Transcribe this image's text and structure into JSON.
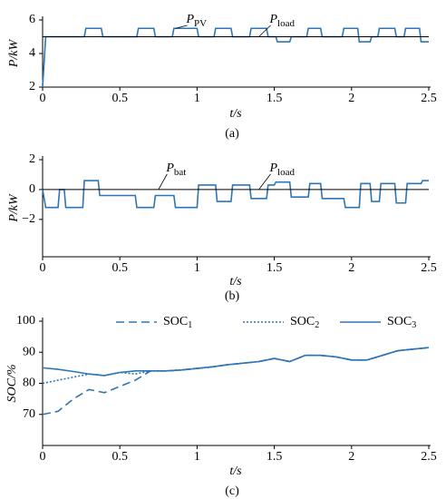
{
  "chart_data": [
    {
      "type": "line",
      "panel": "(a)",
      "ylabel": "P/kW",
      "xlabel": "t/s",
      "xlim": [
        0,
        2.5
      ],
      "xticks": [
        0,
        0.5,
        1,
        1.5,
        2,
        2.5
      ],
      "ylim": [
        2,
        6
      ],
      "yticks": [
        2,
        4,
        6
      ],
      "series": [
        {
          "name": "P",
          "subscript": "PV",
          "color": "#2e75b6",
          "style": "solid",
          "x": [
            0,
            0.02,
            0.27,
            0.28,
            0.38,
            0.39,
            0.61,
            0.62,
            0.72,
            0.73,
            0.84,
            0.85,
            1.0,
            1.01,
            1.11,
            1.12,
            1.22,
            1.23,
            1.34,
            1.35,
            1.45,
            1.46,
            1.51,
            1.52,
            1.6,
            1.61,
            1.71,
            1.72,
            1.8,
            1.81,
            1.94,
            1.95,
            2.04,
            2.05,
            2.12,
            2.13,
            2.17,
            2.18,
            2.28,
            2.29,
            2.34,
            2.35,
            2.44,
            2.45,
            2.5
          ],
          "values": [
            2,
            5,
            5,
            5.5,
            5.5,
            5,
            5,
            5.5,
            5.5,
            5,
            5,
            5.5,
            5.5,
            5,
            5,
            5.5,
            5.5,
            5,
            5,
            5.5,
            5.5,
            5,
            5,
            4.7,
            4.7,
            5,
            5,
            5.5,
            5.5,
            5,
            5,
            5.5,
            5.5,
            4.7,
            4.7,
            5,
            5,
            5.5,
            5.5,
            5,
            5,
            5.5,
            5.5,
            4.7,
            4.7
          ]
        },
        {
          "name": "P",
          "subscript": "load",
          "color": "#000000",
          "style": "solid",
          "x": [
            0,
            2.5
          ],
          "values": [
            5,
            5
          ]
        }
      ]
    },
    {
      "type": "line",
      "panel": "(b)",
      "ylabel": "P/kW",
      "xlabel": "t/s",
      "xlim": [
        0,
        2.5
      ],
      "xticks": [
        0,
        0.5,
        1,
        1.5,
        2,
        2.5
      ],
      "ylim": [
        -4.5,
        2
      ],
      "yticks": [
        2,
        0,
        {
          "value": -2,
          "label": "−2"
        }
      ],
      "series": [
        {
          "name": "P",
          "subscript": "bat",
          "color": "#2e75b6",
          "style": "solid",
          "x": [
            0,
            0.02,
            0.1,
            0.11,
            0.14,
            0.15,
            0.26,
            0.27,
            0.36,
            0.37,
            0.6,
            0.61,
            0.72,
            0.73,
            0.85,
            0.86,
            1.0,
            1.01,
            1.12,
            1.13,
            1.22,
            1.23,
            1.34,
            1.35,
            1.45,
            1.46,
            1.5,
            1.51,
            1.6,
            1.61,
            1.72,
            1.73,
            1.8,
            1.81,
            1.95,
            1.96,
            2.05,
            2.06,
            2.12,
            2.13,
            2.18,
            2.19,
            2.28,
            2.29,
            2.35,
            2.36,
            2.45,
            2.46,
            2.5
          ],
          "values": [
            0,
            -1.2,
            -1.2,
            0,
            0,
            -1.2,
            -1.2,
            0.6,
            0.6,
            -0.4,
            -0.4,
            -1.2,
            -1.2,
            -0.4,
            -0.4,
            -1.2,
            -1.2,
            0.3,
            0.3,
            -0.8,
            -0.8,
            0.3,
            0.3,
            -0.6,
            -0.6,
            0.3,
            0.3,
            0.5,
            0.5,
            -0.5,
            -0.5,
            0.4,
            0.4,
            -0.6,
            -0.6,
            -1.2,
            -1.2,
            0.4,
            0.4,
            -0.8,
            -0.8,
            0.4,
            0.4,
            -0.9,
            -0.9,
            0.4,
            0.4,
            0.6,
            0.6
          ]
        },
        {
          "name": "P",
          "subscript": "load",
          "color": "#000000",
          "style": "solid",
          "x": [
            0,
            2.5
          ],
          "values": [
            0,
            0
          ]
        }
      ]
    },
    {
      "type": "line",
      "panel": "(c)",
      "ylabel": "SOC/%",
      "xlabel": "t/s",
      "xlim": [
        0,
        2.5
      ],
      "xticks": [
        0,
        0.5,
        1,
        1.5,
        2,
        2.5
      ],
      "ylim": [
        60,
        100
      ],
      "yticks": [
        70,
        80,
        90,
        100
      ],
      "x": [
        0,
        0.1,
        0.2,
        0.3,
        0.4,
        0.5,
        0.6,
        0.7,
        0.8,
        0.9,
        1.0,
        1.1,
        1.2,
        1.3,
        1.4,
        1.5,
        1.6,
        1.7,
        1.8,
        1.9,
        2.0,
        2.1,
        2.2,
        2.3,
        2.4,
        2.5
      ],
      "series": [
        {
          "name": "SOC",
          "subscript": "1",
          "color": "#2e75b6",
          "style": "dashed",
          "values": [
            70,
            71,
            75,
            78,
            77,
            79,
            81,
            84,
            84,
            84.3,
            84.8,
            85.3,
            86,
            86.5,
            87,
            88,
            87,
            89,
            89,
            88.5,
            87.5,
            87.5,
            89,
            90.5,
            91,
            91.5
          ]
        },
        {
          "name": "SOC",
          "subscript": "2",
          "color": "#2e75b6",
          "style": "dotted",
          "values": [
            80,
            81,
            82,
            83,
            82.5,
            83.5,
            83,
            84,
            84,
            84.3,
            84.8,
            85.3,
            86,
            86.5,
            87,
            88,
            87,
            89,
            89,
            88.5,
            87.5,
            87.5,
            89,
            90.5,
            91,
            91.5
          ]
        },
        {
          "name": "SOC",
          "subscript": "3",
          "color": "#2e75b6",
          "style": "solid",
          "values": [
            85,
            84.5,
            83.8,
            83,
            82.5,
            83.5,
            84,
            84,
            84,
            84.3,
            84.8,
            85.3,
            86,
            86.5,
            87,
            88,
            87,
            89,
            89,
            88.5,
            87.5,
            87.5,
            89,
            90.5,
            91,
            91.5
          ]
        }
      ]
    }
  ]
}
